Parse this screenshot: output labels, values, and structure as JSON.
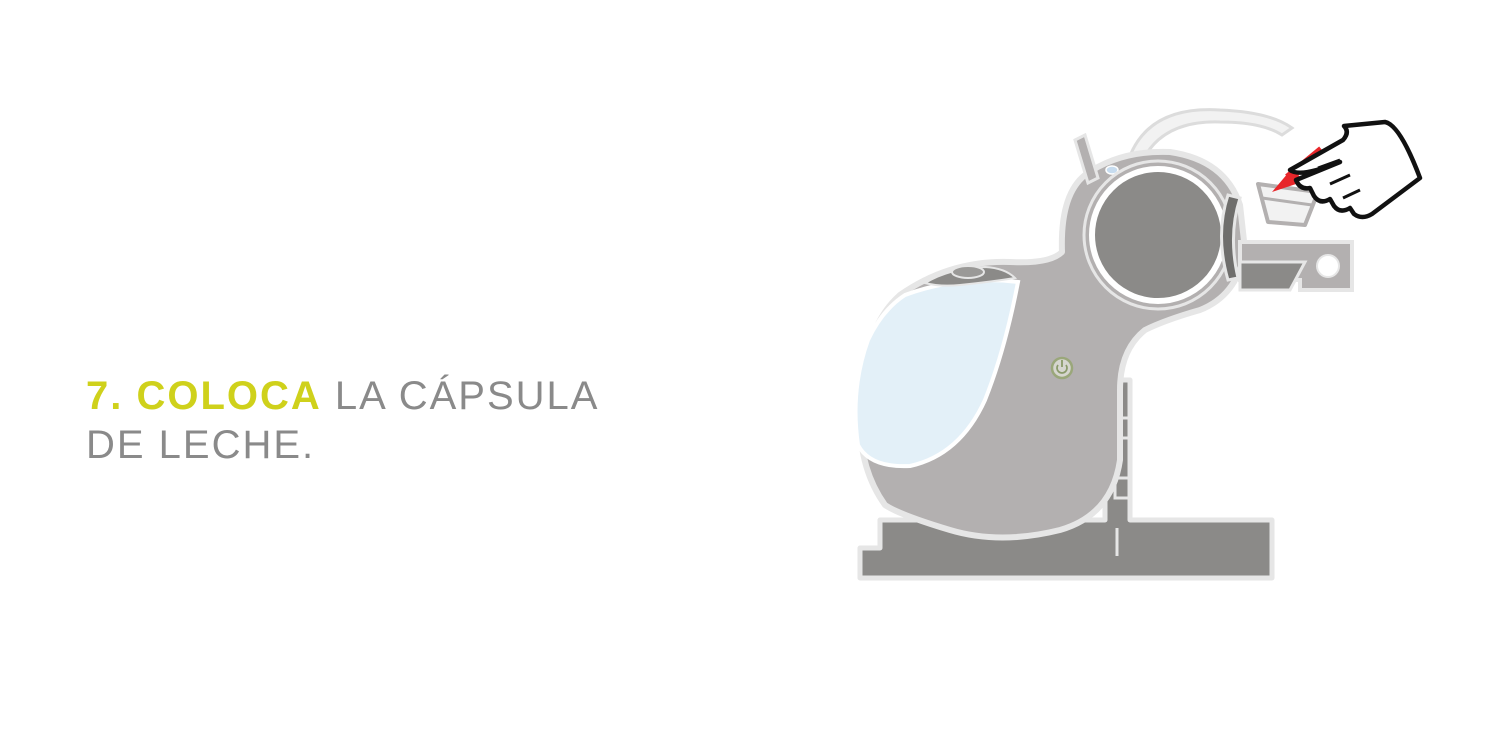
{
  "instruction": {
    "step_emphasis": "7. COLOCA",
    "step_rest": " LA CÁPSULA",
    "line2": "DE LECHE."
  },
  "colors": {
    "accent": "#cfd11b",
    "text": "#8a8a8a",
    "machine_body": "#b3b0b0",
    "machine_dark": "#8b8a88",
    "tank": "#e3f0f8",
    "arrow": "#e8262a"
  },
  "icons": [
    "power-icon",
    "hand-pointer-icon",
    "arrow-icon"
  ]
}
